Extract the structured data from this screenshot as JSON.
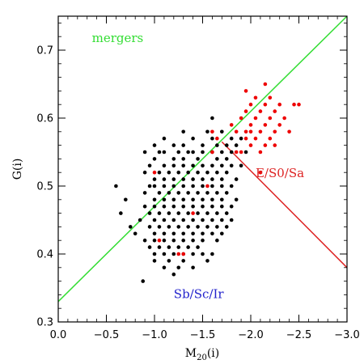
{
  "chart_data": {
    "type": "scatter",
    "xlabel": "M20(i)",
    "xlabel_main": "M",
    "xlabel_sub": "20",
    "xlabel_tail": "(i)",
    "ylabel": "G(i)",
    "xlim": [
      0.0,
      -3.0
    ],
    "ylim": [
      0.3,
      0.75
    ],
    "x_ticks": [
      0.0,
      -0.5,
      -1.0,
      -1.5,
      -2.0,
      -2.5,
      -3.0
    ],
    "x_tick_labels": [
      "0.0",
      "−0.5",
      "−1.0",
      "−1.5",
      "−2.0",
      "−2.5",
      "−3.0"
    ],
    "y_ticks": [
      0.3,
      0.4,
      0.5,
      0.6,
      0.7
    ],
    "y_tick_labels": [
      "0.3",
      "0.4",
      "0.5",
      "0.6",
      "0.7"
    ],
    "annotations": [
      {
        "text": "mergers",
        "color": "#33dd33",
        "x": -0.35,
        "y": 0.712
      },
      {
        "text": "E/S0/Sa",
        "color": "#dd2222",
        "x": -2.05,
        "y": 0.513
      },
      {
        "text": "Sb/Sc/Ir",
        "color": "#2222cc",
        "x": -1.2,
        "y": 0.335
      }
    ],
    "lines": [
      {
        "label": "merger-boundary",
        "color": "#33dd33",
        "points": [
          [
            0.0,
            0.33
          ],
          [
            -3.0,
            0.75
          ]
        ]
      },
      {
        "label": "early-late-boundary",
        "color": "#dd2222",
        "points": [
          [
            -1.7,
            0.565
          ],
          [
            -3.0,
            0.38
          ]
        ]
      }
    ],
    "series": [
      {
        "color": "#000000",
        "points": [
          [
            -0.6,
            0.5
          ],
          [
            -0.7,
            0.48
          ],
          [
            -0.65,
            0.46
          ],
          [
            -0.75,
            0.44
          ],
          [
            -0.8,
            0.43
          ],
          [
            -0.85,
            0.45
          ],
          [
            -0.9,
            0.42
          ],
          [
            -0.9,
            0.47
          ],
          [
            -0.9,
            0.49
          ],
          [
            -0.9,
            0.52
          ],
          [
            -0.9,
            0.55
          ],
          [
            -0.95,
            0.41
          ],
          [
            -0.95,
            0.44
          ],
          [
            -0.95,
            0.46
          ],
          [
            -0.95,
            0.5
          ],
          [
            -0.95,
            0.53
          ],
          [
            -0.88,
            0.36
          ],
          [
            -1.0,
            0.39
          ],
          [
            -1.0,
            0.4
          ],
          [
            -1.0,
            0.42
          ],
          [
            -1.0,
            0.43
          ],
          [
            -1.0,
            0.45
          ],
          [
            -1.0,
            0.47
          ],
          [
            -1.0,
            0.48
          ],
          [
            -1.0,
            0.5
          ],
          [
            -1.0,
            0.51
          ],
          [
            -1.0,
            0.54
          ],
          [
            -1.0,
            0.56
          ],
          [
            -1.05,
            0.41
          ],
          [
            -1.05,
            0.44
          ],
          [
            -1.05,
            0.46
          ],
          [
            -1.05,
            0.49
          ],
          [
            -1.05,
            0.52
          ],
          [
            -1.05,
            0.55
          ],
          [
            -1.1,
            0.38
          ],
          [
            -1.1,
            0.4
          ],
          [
            -1.1,
            0.42
          ],
          [
            -1.1,
            0.43
          ],
          [
            -1.1,
            0.45
          ],
          [
            -1.1,
            0.47
          ],
          [
            -1.1,
            0.48
          ],
          [
            -1.1,
            0.5
          ],
          [
            -1.1,
            0.51
          ],
          [
            -1.1,
            0.53
          ],
          [
            -1.1,
            0.55
          ],
          [
            -1.1,
            0.57
          ],
          [
            -1.15,
            0.39
          ],
          [
            -1.15,
            0.41
          ],
          [
            -1.15,
            0.44
          ],
          [
            -1.15,
            0.46
          ],
          [
            -1.15,
            0.49
          ],
          [
            -1.15,
            0.52
          ],
          [
            -1.2,
            0.37
          ],
          [
            -1.2,
            0.4
          ],
          [
            -1.2,
            0.42
          ],
          [
            -1.2,
            0.43
          ],
          [
            -1.2,
            0.45
          ],
          [
            -1.2,
            0.47
          ],
          [
            -1.2,
            0.48
          ],
          [
            -1.2,
            0.5
          ],
          [
            -1.2,
            0.51
          ],
          [
            -1.2,
            0.53
          ],
          [
            -1.2,
            0.54
          ],
          [
            -1.2,
            0.56
          ],
          [
            -1.25,
            0.38
          ],
          [
            -1.25,
            0.41
          ],
          [
            -1.25,
            0.44
          ],
          [
            -1.25,
            0.46
          ],
          [
            -1.25,
            0.49
          ],
          [
            -1.25,
            0.52
          ],
          [
            -1.25,
            0.55
          ],
          [
            -1.3,
            0.39
          ],
          [
            -1.3,
            0.4
          ],
          [
            -1.3,
            0.42
          ],
          [
            -1.3,
            0.43
          ],
          [
            -1.3,
            0.45
          ],
          [
            -1.3,
            0.47
          ],
          [
            -1.3,
            0.48
          ],
          [
            -1.3,
            0.5
          ],
          [
            -1.3,
            0.51
          ],
          [
            -1.3,
            0.53
          ],
          [
            -1.3,
            0.54
          ],
          [
            -1.3,
            0.56
          ],
          [
            -1.3,
            0.58
          ],
          [
            -1.35,
            0.41
          ],
          [
            -1.35,
            0.44
          ],
          [
            -1.35,
            0.46
          ],
          [
            -1.35,
            0.49
          ],
          [
            -1.35,
            0.52
          ],
          [
            -1.35,
            0.55
          ],
          [
            -1.4,
            0.38
          ],
          [
            -1.4,
            0.4
          ],
          [
            -1.4,
            0.42
          ],
          [
            -1.4,
            0.43
          ],
          [
            -1.4,
            0.45
          ],
          [
            -1.4,
            0.47
          ],
          [
            -1.4,
            0.48
          ],
          [
            -1.4,
            0.5
          ],
          [
            -1.4,
            0.51
          ],
          [
            -1.4,
            0.53
          ],
          [
            -1.4,
            0.55
          ],
          [
            -1.4,
            0.57
          ],
          [
            -1.45,
            0.41
          ],
          [
            -1.45,
            0.44
          ],
          [
            -1.45,
            0.46
          ],
          [
            -1.45,
            0.49
          ],
          [
            -1.45,
            0.52
          ],
          [
            -1.45,
            0.54
          ],
          [
            -1.5,
            0.4
          ],
          [
            -1.5,
            0.42
          ],
          [
            -1.5,
            0.43
          ],
          [
            -1.5,
            0.45
          ],
          [
            -1.5,
            0.47
          ],
          [
            -1.5,
            0.48
          ],
          [
            -1.5,
            0.5
          ],
          [
            -1.5,
            0.51
          ],
          [
            -1.5,
            0.53
          ],
          [
            -1.5,
            0.55
          ],
          [
            -1.5,
            0.56
          ],
          [
            -1.55,
            0.39
          ],
          [
            -1.55,
            0.44
          ],
          [
            -1.55,
            0.46
          ],
          [
            -1.55,
            0.49
          ],
          [
            -1.55,
            0.52
          ],
          [
            -1.55,
            0.58
          ],
          [
            -1.6,
            0.4
          ],
          [
            -1.6,
            0.43
          ],
          [
            -1.6,
            0.45
          ],
          [
            -1.6,
            0.47
          ],
          [
            -1.6,
            0.48
          ],
          [
            -1.6,
            0.5
          ],
          [
            -1.6,
            0.51
          ],
          [
            -1.6,
            0.53
          ],
          [
            -1.6,
            0.55
          ],
          [
            -1.6,
            0.57
          ],
          [
            -1.6,
            0.6
          ],
          [
            -1.65,
            0.42
          ],
          [
            -1.65,
            0.44
          ],
          [
            -1.65,
            0.46
          ],
          [
            -1.65,
            0.49
          ],
          [
            -1.65,
            0.52
          ],
          [
            -1.65,
            0.54
          ],
          [
            -1.65,
            0.56
          ],
          [
            -1.7,
            0.43
          ],
          [
            -1.7,
            0.45
          ],
          [
            -1.7,
            0.47
          ],
          [
            -1.7,
            0.48
          ],
          [
            -1.7,
            0.5
          ],
          [
            -1.7,
            0.51
          ],
          [
            -1.7,
            0.53
          ],
          [
            -1.7,
            0.55
          ],
          [
            -1.7,
            0.58
          ],
          [
            -1.75,
            0.44
          ],
          [
            -1.75,
            0.46
          ],
          [
            -1.75,
            0.49
          ],
          [
            -1.75,
            0.52
          ],
          [
            -1.75,
            0.54
          ],
          [
            -1.75,
            0.56
          ],
          [
            -1.8,
            0.45
          ],
          [
            -1.8,
            0.47
          ],
          [
            -1.8,
            0.5
          ],
          [
            -1.8,
            0.53
          ],
          [
            -1.8,
            0.55
          ],
          [
            -1.8,
            0.57
          ],
          [
            -1.85,
            0.48
          ],
          [
            -1.85,
            0.51
          ],
          [
            -1.85,
            0.56
          ],
          [
            -1.9,
            0.53
          ],
          [
            -1.9,
            0.57
          ],
          [
            -1.95,
            0.55
          ]
        ]
      },
      {
        "color": "#ee0000",
        "points": [
          [
            -1.0,
            0.52
          ],
          [
            -1.05,
            0.42
          ],
          [
            -1.25,
            0.4
          ],
          [
            -1.3,
            0.4
          ],
          [
            -1.4,
            0.46
          ],
          [
            -1.55,
            0.5
          ],
          [
            -1.6,
            0.58
          ],
          [
            -1.6,
            0.55
          ],
          [
            -1.65,
            0.57
          ],
          [
            -1.8,
            0.59
          ],
          [
            -1.85,
            0.55
          ],
          [
            -1.85,
            0.58
          ],
          [
            -1.9,
            0.6
          ],
          [
            -1.9,
            0.55
          ],
          [
            -1.95,
            0.58
          ],
          [
            -1.95,
            0.61
          ],
          [
            -1.95,
            0.64
          ],
          [
            -2.0,
            0.56
          ],
          [
            -2.0,
            0.59
          ],
          [
            -2.0,
            0.62
          ],
          [
            -2.05,
            0.57
          ],
          [
            -2.05,
            0.6
          ],
          [
            -2.05,
            0.63
          ],
          [
            -2.1,
            0.55
          ],
          [
            -2.1,
            0.58
          ],
          [
            -2.1,
            0.61
          ],
          [
            -2.1,
            0.52
          ],
          [
            -2.15,
            0.56
          ],
          [
            -2.15,
            0.59
          ],
          [
            -2.15,
            0.62
          ],
          [
            -2.15,
            0.65
          ],
          [
            -2.2,
            0.57
          ],
          [
            -2.2,
            0.6
          ],
          [
            -2.2,
            0.63
          ],
          [
            -2.25,
            0.58
          ],
          [
            -2.25,
            0.61
          ],
          [
            -2.3,
            0.59
          ],
          [
            -2.3,
            0.62
          ],
          [
            -2.35,
            0.6
          ],
          [
            -2.4,
            0.58
          ],
          [
            -2.45,
            0.62
          ],
          [
            -2.5,
            0.62
          ],
          [
            -1.95,
            0.57
          ],
          [
            -2.0,
            0.58
          ],
          [
            -2.25,
            0.56
          ]
        ]
      }
    ]
  }
}
